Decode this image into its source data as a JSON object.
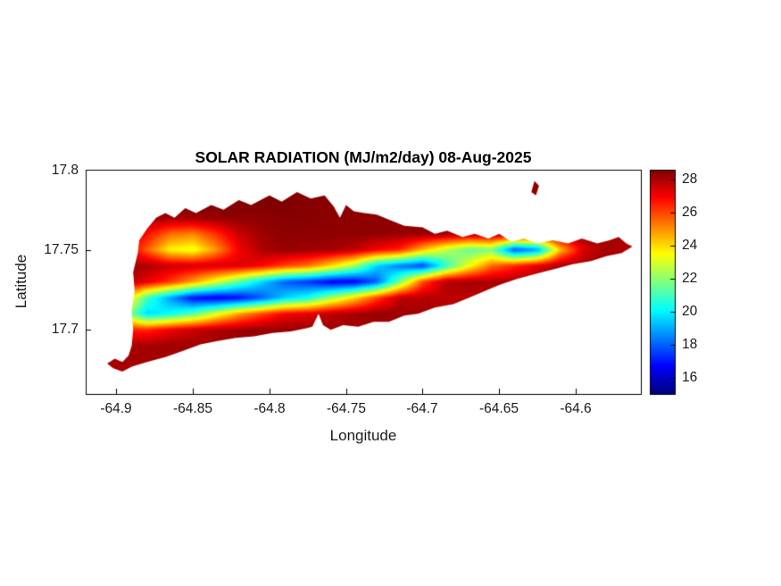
{
  "chart_data": {
    "type": "heatmap",
    "title": "SOLAR RADIATION (MJ/m2/day) 08-Aug-2025",
    "xlabel": "Longitude",
    "ylabel": "Latitude",
    "xlim": [
      -64.92,
      -64.5575
    ],
    "ylim": [
      17.66,
      17.8
    ],
    "xticks": [
      -64.9,
      -64.85,
      -64.8,
      -64.75,
      -64.7,
      -64.65,
      -64.6
    ],
    "xtick_labels": [
      "-64.9",
      "-64.85",
      "-64.8",
      "-64.75",
      "-64.7",
      "-64.65",
      "-64.6"
    ],
    "yticks": [
      17.8,
      17.75,
      17.7
    ],
    "ytick_labels": [
      "17.8",
      "17.75",
      "17.7"
    ],
    "grid_on": false,
    "colorbar": {
      "position": "right",
      "colormap": "jet",
      "vmin": 15.0,
      "vmax": 28.6,
      "ticks": [
        28,
        26,
        24,
        22,
        20,
        18,
        16
      ],
      "tick_labels": [
        "28",
        "26",
        "24",
        "22",
        "20",
        "18",
        "16"
      ]
    },
    "grid": {
      "lon_start": -64.91,
      "lon_step": 0.015,
      "ncols": 25,
      "lat_start": 17.8,
      "lat_step": -0.01,
      "nrows": 14,
      "values": [
        [
          28.5,
          28.5,
          28.5,
          28.5,
          28.5,
          28.5,
          28.5,
          28.5,
          28.5,
          28.5,
          28.5,
          28.5,
          28.5,
          28.5,
          28.4,
          28.4,
          28.4,
          28.4,
          28.4,
          28.4,
          28.4,
          28.4,
          28.4,
          28.4,
          28.4
        ],
        [
          28.5,
          28.5,
          28.5,
          28.5,
          28.5,
          28.5,
          28.5,
          28.5,
          28.5,
          28.5,
          28.5,
          28.5,
          28.5,
          28.5,
          28.4,
          28.4,
          28.4,
          28.4,
          28.4,
          28.4,
          28.4,
          28.4,
          28.4,
          28.4,
          28.4
        ],
        [
          28.4,
          28.5,
          28.6,
          28.6,
          28.6,
          28.6,
          28.6,
          28.6,
          28.6,
          28.5,
          28.5,
          28.5,
          28.4,
          28.4,
          28.4,
          28.4,
          28.4,
          28.4,
          28.4,
          28.4,
          28.4,
          28.4,
          28.4,
          28.3,
          28.3
        ],
        [
          28.4,
          28.4,
          28.3,
          28.2,
          28.2,
          28.3,
          28.4,
          28.4,
          28.5,
          28.5,
          28.4,
          28.4,
          28.4,
          28.4,
          28.4,
          28.4,
          28.4,
          28.4,
          28.4,
          28.4,
          28.4,
          28.4,
          28.3,
          28.2,
          28.2
        ],
        [
          28.4,
          27.9,
          26.8,
          25.5,
          25.2,
          26.3,
          27.6,
          28.2,
          28.4,
          28.4,
          28.4,
          28.4,
          28.4,
          28.3,
          28.3,
          28.2,
          28.0,
          28.1,
          28.2,
          28.0,
          28.2,
          28.3,
          28.2,
          28.0,
          28.0
        ],
        [
          28.4,
          27.5,
          25.7,
          23.6,
          23.2,
          24.9,
          27.0,
          28.0,
          28.3,
          28.2,
          28.1,
          27.8,
          27.0,
          26.4,
          24.4,
          22.7,
          21.4,
          21.7,
          17.7,
          18.7,
          24.4,
          27.4,
          28.1,
          27.9,
          27.8
        ],
        [
          28.4,
          28.3,
          28.0,
          27.6,
          27.5,
          27.5,
          27.4,
          26.9,
          26.0,
          25.4,
          24.0,
          22.3,
          19.5,
          18.3,
          17.5,
          20.6,
          23.3,
          25.5,
          26.4,
          27.3,
          28.1,
          28.2,
          28.1,
          27.9,
          27.8
        ],
        [
          28.3,
          28.0,
          27.2,
          26.2,
          24.8,
          23.1,
          21.3,
          19.5,
          17.9,
          17.3,
          16.5,
          16.5,
          17.9,
          21.7,
          25.9,
          27.9,
          28.1,
          28.0,
          28.1,
          28.2,
          28.2,
          28.2,
          28.1,
          28.0,
          27.9
        ],
        [
          27.5,
          24.9,
          21.0,
          18.8,
          16.8,
          16.4,
          16.8,
          17.9,
          19.5,
          20.4,
          22.3,
          24.0,
          26.0,
          27.8,
          27.9,
          27.8,
          27.8,
          27.8,
          27.9,
          28.0,
          28.1,
          28.1,
          28.0,
          27.9,
          27.9
        ],
        [
          26.4,
          22.6,
          19.6,
          20.2,
          21.3,
          23.1,
          24.8,
          26.0,
          27.0,
          27.3,
          27.8,
          28.1,
          28.3,
          28.2,
          28.1,
          28.0,
          28.0,
          28.0,
          28.0,
          28.0,
          28.0,
          28.0,
          28.0,
          27.9,
          27.9
        ],
        [
          27.5,
          26.6,
          26.4,
          27.1,
          27.6,
          28.0,
          28.2,
          28.3,
          28.3,
          28.2,
          28.2,
          28.1,
          28.1,
          28.0,
          28.0,
          28.0,
          28.0,
          28.0,
          28.0,
          28.0,
          28.0,
          28.0,
          28.0,
          27.9,
          27.9
        ],
        [
          28.2,
          28.1,
          28.1,
          28.2,
          28.2,
          28.2,
          28.2,
          28.2,
          28.1,
          28.1,
          28.0,
          28.0,
          28.0,
          28.0,
          28.0,
          27.9,
          27.9,
          27.9,
          27.9,
          27.9,
          27.9,
          27.9,
          27.9,
          27.9,
          27.9
        ],
        [
          28.1,
          28.1,
          28.1,
          28.1,
          28.1,
          28.1,
          28.1,
          28.1,
          28.1,
          28.1,
          28.1,
          28.1,
          28.1,
          28.1,
          28.1,
          28.1,
          28.1,
          28.1,
          28.1,
          28.1,
          28.1,
          28.1,
          28.1,
          28.1,
          28.1
        ],
        [
          28.0,
          28.0,
          28.0,
          28.0,
          28.0,
          28.0,
          28.0,
          28.0,
          28.0,
          28.0,
          28.0,
          28.0,
          28.0,
          28.0,
          28.0,
          28.0,
          28.0,
          28.0,
          28.0,
          28.0,
          28.0,
          28.0,
          28.0,
          28.0,
          28.0
        ]
      ]
    },
    "island_outline": [
      [
        -64.906,
        17.679
      ],
      [
        -64.901,
        17.682
      ],
      [
        -64.896,
        17.68
      ],
      [
        -64.892,
        17.684
      ],
      [
        -64.89,
        17.69
      ],
      [
        -64.889,
        17.7
      ],
      [
        -64.89,
        17.712
      ],
      [
        -64.888,
        17.724
      ],
      [
        -64.889,
        17.736
      ],
      [
        -64.886,
        17.748
      ],
      [
        -64.885,
        17.756
      ],
      [
        -64.88,
        17.763
      ],
      [
        -64.874,
        17.77
      ],
      [
        -64.868,
        17.773
      ],
      [
        -64.862,
        17.77
      ],
      [
        -64.855,
        17.776
      ],
      [
        -64.848,
        17.773
      ],
      [
        -64.838,
        17.778
      ],
      [
        -64.83,
        17.775
      ],
      [
        -64.82,
        17.781
      ],
      [
        -64.812,
        17.778
      ],
      [
        -64.8,
        17.784
      ],
      [
        -64.792,
        17.78
      ],
      [
        -64.782,
        17.786
      ],
      [
        -64.773,
        17.782
      ],
      [
        -64.764,
        17.784
      ],
      [
        -64.758,
        17.777
      ],
      [
        -64.754,
        17.77
      ],
      [
        -64.75,
        17.778
      ],
      [
        -64.745,
        17.774
      ],
      [
        -64.738,
        17.773
      ],
      [
        -64.73,
        17.772
      ],
      [
        -64.72,
        17.768
      ],
      [
        -64.712,
        17.765
      ],
      [
        -64.7,
        17.764
      ],
      [
        -64.692,
        17.76
      ],
      [
        -64.684,
        17.762
      ],
      [
        -64.674,
        17.758
      ],
      [
        -64.666,
        17.76
      ],
      [
        -64.657,
        17.757
      ],
      [
        -64.65,
        17.76
      ],
      [
        -64.642,
        17.755
      ],
      [
        -64.634,
        17.757
      ],
      [
        -64.625,
        17.754
      ],
      [
        -64.615,
        17.756
      ],
      [
        -64.605,
        17.754
      ],
      [
        -64.596,
        17.757
      ],
      [
        -64.586,
        17.754
      ],
      [
        -64.578,
        17.756
      ],
      [
        -64.572,
        17.758
      ],
      [
        -64.567,
        17.754
      ],
      [
        -64.563,
        17.752
      ],
      [
        -64.57,
        17.748
      ],
      [
        -64.58,
        17.746
      ],
      [
        -64.59,
        17.743
      ],
      [
        -64.602,
        17.741
      ],
      [
        -64.614,
        17.738
      ],
      [
        -64.626,
        17.735
      ],
      [
        -64.638,
        17.732
      ],
      [
        -64.65,
        17.728
      ],
      [
        -64.66,
        17.724
      ],
      [
        -64.67,
        17.72
      ],
      [
        -64.68,
        17.716
      ],
      [
        -64.692,
        17.714
      ],
      [
        -64.703,
        17.71
      ],
      [
        -64.712,
        17.709
      ],
      [
        -64.722,
        17.705
      ],
      [
        -64.732,
        17.705
      ],
      [
        -64.742,
        17.702
      ],
      [
        -64.752,
        17.703
      ],
      [
        -64.76,
        17.7
      ],
      [
        -64.765,
        17.703
      ],
      [
        -64.768,
        17.71
      ],
      [
        -64.772,
        17.702
      ],
      [
        -64.776,
        17.701
      ],
      [
        -64.786,
        17.699
      ],
      [
        -64.798,
        17.698
      ],
      [
        -64.81,
        17.696
      ],
      [
        -64.822,
        17.695
      ],
      [
        -64.834,
        17.693
      ],
      [
        -64.845,
        17.691
      ],
      [
        -64.856,
        17.687
      ],
      [
        -64.868,
        17.683
      ],
      [
        -64.88,
        17.68
      ],
      [
        -64.89,
        17.677
      ],
      [
        -64.896,
        17.674
      ],
      [
        -64.902,
        17.676
      ]
    ],
    "buck_island_outline": [
      [
        -64.629,
        17.786
      ],
      [
        -64.627,
        17.793
      ],
      [
        -64.624,
        17.79
      ],
      [
        -64.626,
        17.784
      ]
    ]
  },
  "colors": {
    "background": "#ffffff",
    "axis": "#000000",
    "text": "#1a1a1a"
  }
}
